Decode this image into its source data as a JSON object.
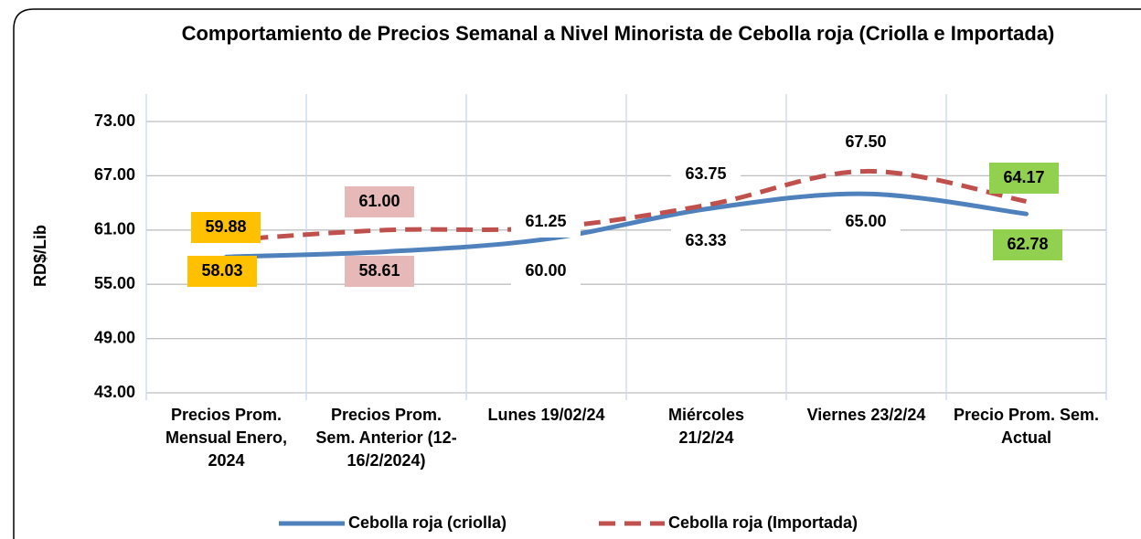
{
  "chart_data": {
    "type": "line",
    "title": "Comportamiento de Precios Semanal a Nivel Minorista de Cebolla roja (Criolla e Importada)",
    "ylabel": "RD$/Lib",
    "categories": [
      "Precios Prom. Mensual Enero, 2024",
      "Precios Prom. Sem. Anterior (12-16/2/2024)",
      "Lunes  19/02/24",
      "Miércoles 21/2/24",
      "Viernes 23/2/24",
      "Precio Prom. Sem. Actual"
    ],
    "series": [
      {
        "name": "Cebolla roja (criolla)",
        "color": "#4f81bd",
        "dashed": false,
        "values": [
          58.03,
          58.61,
          60.0,
          63.33,
          65.0,
          62.78
        ],
        "value_labels": [
          "58.03",
          "58.61",
          "60.00",
          "63.33",
          "65.00",
          "62.78"
        ]
      },
      {
        "name": "Cebolla roja (Importada)",
        "color": "#c0504d",
        "dashed": true,
        "values": [
          59.88,
          61.0,
          61.25,
          63.75,
          67.5,
          64.17
        ],
        "value_labels": [
          "59.88",
          "61.00",
          "61.25",
          "63.75",
          "67.50",
          "64.17"
        ]
      }
    ],
    "ylim": [
      43,
      73
    ],
    "yticks": [
      {
        "value": 43,
        "label": "43.00"
      },
      {
        "value": 49,
        "label": "49.00"
      },
      {
        "value": 55,
        "label": "55.00"
      },
      {
        "value": 61,
        "label": "61.00"
      },
      {
        "value": 67,
        "label": "67.00"
      },
      {
        "value": 73,
        "label": "73.00"
      }
    ],
    "grid": true,
    "legend": "bottom"
  }
}
